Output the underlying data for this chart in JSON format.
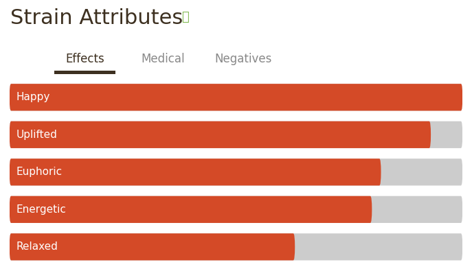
{
  "title": "Strain Attributes",
  "title_color": "#3d3020",
  "title_fontsize": 22,
  "info_icon_color": "#7ab648",
  "tab_labels": [
    "Effects",
    "Medical",
    "Negatives"
  ],
  "active_tab": 0,
  "active_tab_color": "#3d3020",
  "inactive_tab_color": "#888888",
  "tab_underline_color": "#3d3020",
  "categories": [
    "Happy",
    "Uplifted",
    "Euphoric",
    "Energetic",
    "Relaxed"
  ],
  "values": [
    1.0,
    0.93,
    0.82,
    0.8,
    0.63
  ],
  "bar_color": "#d44a27",
  "bg_bar_color": "#cccccc",
  "label_color": "#ffffff",
  "label_fontsize": 11,
  "background_color": "#ffffff",
  "separator_color": "#dddddd",
  "tab_fontsize": 12
}
